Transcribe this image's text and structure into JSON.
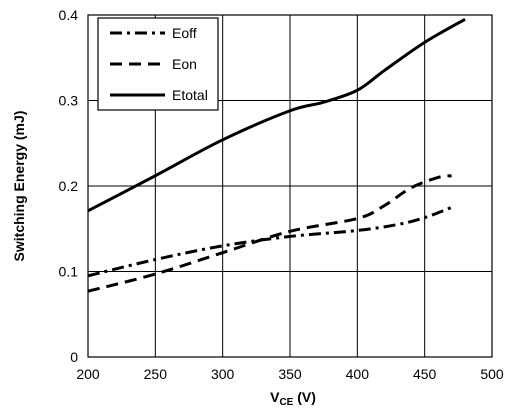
{
  "chart_data": {
    "type": "line",
    "xlabel_main": "V",
    "xlabel_sub": "CE",
    "xlabel_unit": " (V)",
    "ylabel": "Switching Energy (mJ)",
    "xlim": [
      200,
      500
    ],
    "ylim": [
      0,
      0.4
    ],
    "xticks": [
      "200",
      "250",
      "300",
      "350",
      "400",
      "450",
      "500"
    ],
    "yticks": [
      "0",
      "0.1",
      "0.2",
      "0.3",
      "0.4"
    ],
    "grid": true,
    "legend_position": "top-left",
    "series": [
      {
        "name": "Eoff",
        "style": "dash-dot",
        "points": [
          [
            200,
            0.095
          ],
          [
            250,
            0.114
          ],
          [
            300,
            0.13
          ],
          [
            350,
            0.141
          ],
          [
            400,
            0.148
          ],
          [
            430,
            0.155
          ],
          [
            450,
            0.163
          ],
          [
            470,
            0.175
          ]
        ]
      },
      {
        "name": "Eon",
        "style": "dash",
        "points": [
          [
            200,
            0.077
          ],
          [
            250,
            0.097
          ],
          [
            300,
            0.122
          ],
          [
            350,
            0.147
          ],
          [
            400,
            0.162
          ],
          [
            420,
            0.177
          ],
          [
            440,
            0.198
          ],
          [
            460,
            0.21
          ],
          [
            470,
            0.212
          ]
        ]
      },
      {
        "name": "Etotal",
        "style": "solid",
        "points": [
          [
            200,
            0.171
          ],
          [
            250,
            0.212
          ],
          [
            300,
            0.254
          ],
          [
            350,
            0.288
          ],
          [
            375,
            0.298
          ],
          [
            400,
            0.312
          ],
          [
            420,
            0.335
          ],
          [
            450,
            0.368
          ],
          [
            480,
            0.395
          ]
        ]
      }
    ]
  }
}
